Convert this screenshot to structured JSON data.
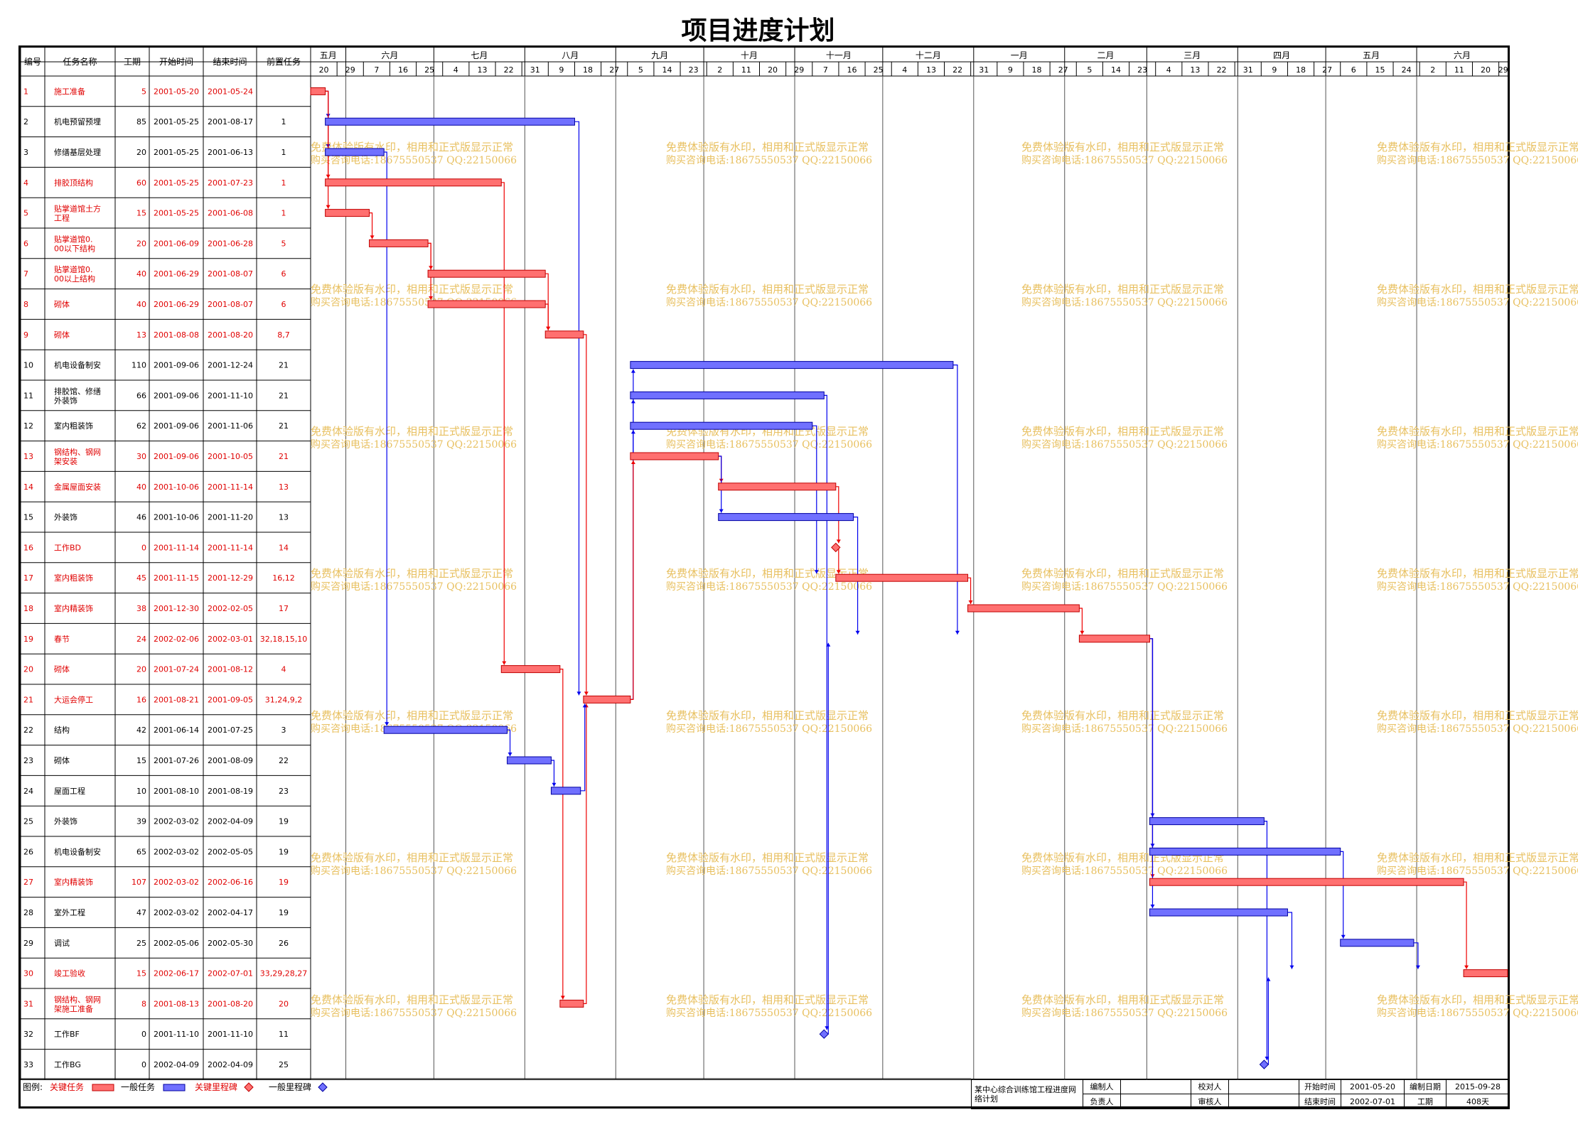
{
  "title": "项目进度计划",
  "table_headers": [
    "编号",
    "任务名称",
    "工期",
    "开始时间",
    "结束时间",
    "前置任务"
  ],
  "watermark": [
    "免费体验版有水印，相用和正式版显示正常",
    "购买咨询电话:18675550537 QQ:22150066"
  ],
  "colors": {
    "critical": "#ff7070",
    "normal": "#7070ff",
    "critical_text": "#e00000",
    "normal_text": "#000000",
    "link_blue": "#0000ee",
    "link_red": "#ee0000",
    "watermark": "#e8c060"
  },
  "legend": {
    "label": "图例:",
    "items": [
      {
        "text": "关键任务",
        "kind": "critical-bar"
      },
      {
        "text": "一般任务",
        "kind": "normal-bar"
      },
      {
        "text": "关键里程碑",
        "kind": "critical-milestone"
      },
      {
        "text": "一般里程碑",
        "kind": "normal-milestone"
      }
    ]
  },
  "info": {
    "project_name": "某中心综合训练馆工程进度网络计划",
    "compiler_label": "编制人",
    "compiler": "",
    "checker_label": "校对人",
    "checker": "",
    "start_label": "开始时间",
    "start": "2001-05-20",
    "date_label": "编制日期",
    "date": "2015-09-28",
    "owner_label": "负责人",
    "owner": "",
    "reviewer_label": "审核人",
    "reviewer": "",
    "end_label": "结束时间",
    "end": "2002-07-01",
    "duration_label": "工期",
    "duration": "408天"
  },
  "chart_data": {
    "type": "gantt",
    "title": "项目进度计划",
    "timeline_start": "2001-05-20",
    "timeline_end": "2002-07-01",
    "months": [
      {
        "label": "五月",
        "start": "2001-05-20"
      },
      {
        "label": "六月",
        "start": "2001-06-01"
      },
      {
        "label": "七月",
        "start": "2001-07-01"
      },
      {
        "label": "八月",
        "start": "2001-08-01"
      },
      {
        "label": "九月",
        "start": "2001-09-01"
      },
      {
        "label": "十月",
        "start": "2001-10-01"
      },
      {
        "label": "十一月",
        "start": "2001-11-01"
      },
      {
        "label": "十二月",
        "start": "2001-12-01"
      },
      {
        "label": "一月",
        "start": "2002-01-01"
      },
      {
        "label": "二月",
        "start": "2002-02-01"
      },
      {
        "label": "三月",
        "start": "2002-03-01"
      },
      {
        "label": "四月",
        "start": "2002-04-01"
      },
      {
        "label": "五月",
        "start": "2002-05-01"
      },
      {
        "label": "六月",
        "start": "2002-06-01"
      }
    ],
    "day_ticks": [
      {
        "label": "20",
        "date": "2001-05-20"
      },
      {
        "label": "29",
        "date": "2001-05-29"
      },
      {
        "label": "7",
        "date": "2001-06-07"
      },
      {
        "label": "16",
        "date": "2001-06-16"
      },
      {
        "label": "25",
        "date": "2001-06-25"
      },
      {
        "label": "4",
        "date": "2001-07-04"
      },
      {
        "label": "13",
        "date": "2001-07-13"
      },
      {
        "label": "22",
        "date": "2001-07-22"
      },
      {
        "label": "31",
        "date": "2001-07-31"
      },
      {
        "label": "9",
        "date": "2001-08-09"
      },
      {
        "label": "18",
        "date": "2001-08-18"
      },
      {
        "label": "27",
        "date": "2001-08-27"
      },
      {
        "label": "5",
        "date": "2001-09-05"
      },
      {
        "label": "14",
        "date": "2001-09-14"
      },
      {
        "label": "23",
        "date": "2001-09-23"
      },
      {
        "label": "2",
        "date": "2001-10-02"
      },
      {
        "label": "11",
        "date": "2001-10-11"
      },
      {
        "label": "20",
        "date": "2001-10-20"
      },
      {
        "label": "29",
        "date": "2001-10-29"
      },
      {
        "label": "7",
        "date": "2001-11-07"
      },
      {
        "label": "16",
        "date": "2001-11-16"
      },
      {
        "label": "25",
        "date": "2001-11-25"
      },
      {
        "label": "4",
        "date": "2001-12-04"
      },
      {
        "label": "13",
        "date": "2001-12-13"
      },
      {
        "label": "22",
        "date": "2001-12-22"
      },
      {
        "label": "31",
        "date": "2001-12-31"
      },
      {
        "label": "9",
        "date": "2002-01-09"
      },
      {
        "label": "18",
        "date": "2002-01-18"
      },
      {
        "label": "27",
        "date": "2002-01-27"
      },
      {
        "label": "5",
        "date": "2002-02-05"
      },
      {
        "label": "14",
        "date": "2002-02-14"
      },
      {
        "label": "23",
        "date": "2002-02-23"
      },
      {
        "label": "4",
        "date": "2002-03-04"
      },
      {
        "label": "13",
        "date": "2002-03-13"
      },
      {
        "label": "22",
        "date": "2002-03-22"
      },
      {
        "label": "31",
        "date": "2002-03-31"
      },
      {
        "label": "9",
        "date": "2002-04-09"
      },
      {
        "label": "18",
        "date": "2002-04-18"
      },
      {
        "label": "27",
        "date": "2002-04-27"
      },
      {
        "label": "6",
        "date": "2002-05-06"
      },
      {
        "label": "15",
        "date": "2002-05-15"
      },
      {
        "label": "24",
        "date": "2002-05-24"
      },
      {
        "label": "2",
        "date": "2002-06-02"
      },
      {
        "label": "11",
        "date": "2002-06-11"
      },
      {
        "label": "20",
        "date": "2002-06-20"
      },
      {
        "label": "29",
        "date": "2002-06-29"
      }
    ],
    "tasks": [
      {
        "id": 1,
        "name": "施工准备",
        "duration": 5,
        "start": "2001-05-20",
        "end": "2001-05-24",
        "pred": "",
        "critical": true
      },
      {
        "id": 2,
        "name": "机电预留预埋",
        "duration": 85,
        "start": "2001-05-25",
        "end": "2001-08-17",
        "pred": "1",
        "critical": false
      },
      {
        "id": 3,
        "name": "修缮基层处理",
        "duration": 20,
        "start": "2001-05-25",
        "end": "2001-06-13",
        "pred": "1",
        "critical": false
      },
      {
        "id": 4,
        "name": "排胶顶结构",
        "duration": 60,
        "start": "2001-05-25",
        "end": "2001-07-23",
        "pred": "1",
        "critical": true
      },
      {
        "id": 5,
        "name": "贴掌道馆土方工程",
        "duration": 15,
        "start": "2001-05-25",
        "end": "2001-06-08",
        "pred": "1",
        "critical": true
      },
      {
        "id": 6,
        "name": "贴掌道馆0.00以下结构",
        "duration": 20,
        "start": "2001-06-09",
        "end": "2001-06-28",
        "pred": "5",
        "critical": true
      },
      {
        "id": 7,
        "name": "贴掌道馆0.00以上结构",
        "duration": 40,
        "start": "2001-06-29",
        "end": "2001-08-07",
        "pred": "6",
        "critical": true
      },
      {
        "id": 8,
        "name": "砌体",
        "duration": 40,
        "start": "2001-06-29",
        "end": "2001-08-07",
        "pred": "6",
        "critical": true
      },
      {
        "id": 9,
        "name": "砌体",
        "duration": 13,
        "start": "2001-08-08",
        "end": "2001-08-20",
        "pred": "8,7",
        "critical": true
      },
      {
        "id": 10,
        "name": "机电设备制安",
        "duration": 110,
        "start": "2001-09-06",
        "end": "2001-12-24",
        "pred": "21",
        "critical": false
      },
      {
        "id": 11,
        "name": "排胶馆、修缮外装饰",
        "duration": 66,
        "start": "2001-09-06",
        "end": "2001-11-10",
        "pred": "21",
        "critical": false
      },
      {
        "id": 12,
        "name": "室内粗装饰",
        "duration": 62,
        "start": "2001-09-06",
        "end": "2001-11-06",
        "pred": "21",
        "critical": false
      },
      {
        "id": 13,
        "name": "钢结构、钢网架安装",
        "duration": 30,
        "start": "2001-09-06",
        "end": "2001-10-05",
        "pred": "21",
        "critical": true
      },
      {
        "id": 14,
        "name": "金属屋面安装",
        "duration": 40,
        "start": "2001-10-06",
        "end": "2001-11-14",
        "pred": "13",
        "critical": true
      },
      {
        "id": 15,
        "name": "外装饰",
        "duration": 46,
        "start": "2001-10-06",
        "end": "2001-11-20",
        "pred": "13",
        "critical": false
      },
      {
        "id": 16,
        "name": "工作BD",
        "duration": 0,
        "start": "2001-11-14",
        "end": "2001-11-14",
        "pred": "14",
        "critical": true
      },
      {
        "id": 17,
        "name": "室内粗装饰",
        "duration": 45,
        "start": "2001-11-15",
        "end": "2001-12-29",
        "pred": "16,12",
        "critical": true
      },
      {
        "id": 18,
        "name": "室内精装饰",
        "duration": 38,
        "start": "2001-12-30",
        "end": "2002-02-05",
        "pred": "17",
        "critical": true
      },
      {
        "id": 19,
        "name": "春节",
        "duration": 24,
        "start": "2002-02-06",
        "end": "2002-03-01",
        "pred": "32,18,15,10",
        "critical": true
      },
      {
        "id": 20,
        "name": "砌体",
        "duration": 20,
        "start": "2001-07-24",
        "end": "2001-08-12",
        "pred": "4",
        "critical": true
      },
      {
        "id": 21,
        "name": "大运会停工",
        "duration": 16,
        "start": "2001-08-21",
        "end": "2001-09-05",
        "pred": "31,24,9,2",
        "critical": true
      },
      {
        "id": 22,
        "name": "结构",
        "duration": 42,
        "start": "2001-06-14",
        "end": "2001-07-25",
        "pred": "3",
        "critical": false
      },
      {
        "id": 23,
        "name": "砌体",
        "duration": 15,
        "start": "2001-07-26",
        "end": "2001-08-09",
        "pred": "22",
        "critical": false
      },
      {
        "id": 24,
        "name": "屋面工程",
        "duration": 10,
        "start": "2001-08-10",
        "end": "2001-08-19",
        "pred": "23",
        "critical": false
      },
      {
        "id": 25,
        "name": "外装饰",
        "duration": 39,
        "start": "2002-03-02",
        "end": "2002-04-09",
        "pred": "19",
        "critical": false
      },
      {
        "id": 26,
        "name": "机电设备制安",
        "duration": 65,
        "start": "2002-03-02",
        "end": "2002-05-05",
        "pred": "19",
        "critical": false
      },
      {
        "id": 27,
        "name": "室内精装饰",
        "duration": 107,
        "start": "2002-03-02",
        "end": "2002-06-16",
        "pred": "19",
        "critical": true
      },
      {
        "id": 28,
        "name": "室外工程",
        "duration": 47,
        "start": "2002-03-02",
        "end": "2002-04-17",
        "pred": "19",
        "critical": false
      },
      {
        "id": 29,
        "name": "调试",
        "duration": 25,
        "start": "2002-05-06",
        "end": "2002-05-30",
        "pred": "26",
        "critical": false
      },
      {
        "id": 30,
        "name": "竣工验收",
        "duration": 15,
        "start": "2002-06-17",
        "end": "2002-07-01",
        "pred": "33,29,28,27",
        "critical": true
      },
      {
        "id": 31,
        "name": "钢结构、钢网架施工准备",
        "duration": 8,
        "start": "2001-08-13",
        "end": "2001-08-20",
        "pred": "20",
        "critical": true
      },
      {
        "id": 32,
        "name": "工作BF",
        "duration": 0,
        "start": "2001-11-10",
        "end": "2001-11-10",
        "pred": "11",
        "critical": false
      },
      {
        "id": 33,
        "name": "工作BG",
        "duration": 0,
        "start": "2002-04-09",
        "end": "2002-04-09",
        "pred": "25",
        "critical": false
      }
    ]
  }
}
